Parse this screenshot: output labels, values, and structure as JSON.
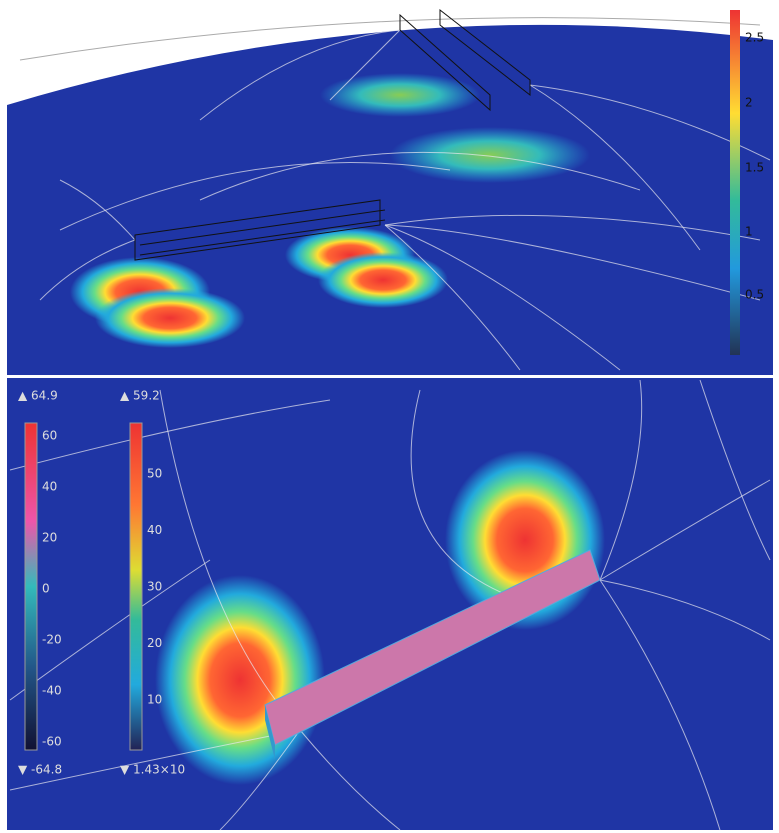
{
  "top_panel": {
    "colorbar": {
      "ticks": [
        "2.5",
        "2",
        "1.5",
        "1",
        "0.5"
      ]
    }
  },
  "bottom_panel": {
    "left_colorbar": {
      "max_label": "▲ 64.9",
      "min_label": "▼ -64.8",
      "ticks": [
        "60",
        "40",
        "20",
        "0",
        "-20",
        "-40",
        "-60"
      ]
    },
    "right_colorbar": {
      "max_label": "▲ 59.2",
      "min_label": "▼ 1.43×10",
      "ticks": [
        "50",
        "40",
        "30",
        "20",
        "10"
      ]
    }
  }
}
